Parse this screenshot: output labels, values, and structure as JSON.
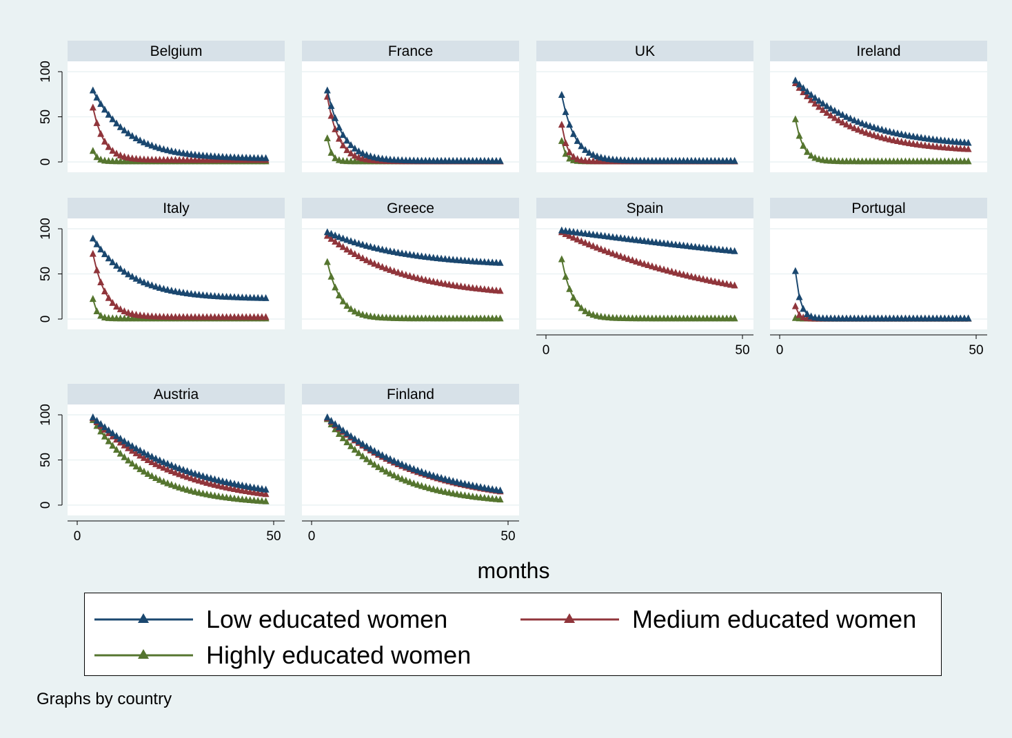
{
  "chart_data": {
    "type": "line",
    "title": "",
    "xlabel": "months",
    "ylabel": "",
    "xlim": [
      0,
      50
    ],
    "ylim": [
      0,
      100
    ],
    "xticks": [
      "0",
      "50"
    ],
    "yticks": [
      "0",
      "50",
      "100"
    ],
    "grid": true,
    "legend_position": "bottom",
    "note": "Graphs by country",
    "x_start": 4,
    "x_end": 48,
    "x_step": 1,
    "series_meta": [
      {
        "name": "Low educated women",
        "color": "#1a476f"
      },
      {
        "name": "Medium educated women",
        "color": "#90353b"
      },
      {
        "name": "Highly educated women",
        "color": "#55752f"
      }
    ],
    "panels": [
      {
        "country": "Belgium",
        "low": {
          "start": 79,
          "end": 4,
          "shape": 0.11,
          "floor": 0.05
        },
        "medium": {
          "start": 60,
          "end": 2,
          "shape": 0.35,
          "floor": 0.02
        },
        "high": {
          "start": 12,
          "end": 0.5,
          "shape": 0.9,
          "floor": 0.01
        }
      },
      {
        "country": "France",
        "low": {
          "start": 79,
          "end": 1,
          "shape": 0.25,
          "floor": 0
        },
        "medium": {
          "start": 72,
          "end": 0.5,
          "shape": 0.35,
          "floor": 0
        },
        "high": {
          "start": 26,
          "end": 0.5,
          "shape": 1.0,
          "floor": 0
        }
      },
      {
        "country": "UK",
        "low": {
          "start": 74,
          "end": 1,
          "shape": 0.3,
          "floor": 0
        },
        "medium": {
          "start": 41,
          "end": 0.5,
          "shape": 0.7,
          "floor": 0
        },
        "high": {
          "start": 23,
          "end": 0.5,
          "shape": 1.0,
          "floor": 0
        }
      },
      {
        "country": "Ireland",
        "low": {
          "start": 90,
          "end": 21,
          "shape": 0.06,
          "floor": 0.2
        },
        "medium": {
          "start": 87,
          "end": 14,
          "shape": 0.07,
          "floor": 0.12
        },
        "high": {
          "start": 47,
          "end": 0.5,
          "shape": 0.5,
          "floor": 0
        }
      },
      {
        "country": "Italy",
        "low": {
          "start": 89,
          "end": 23,
          "shape": 0.1,
          "floor": 0.25
        },
        "medium": {
          "start": 72,
          "end": 2,
          "shape": 0.3,
          "floor": 0.02
        },
        "high": {
          "start": 22,
          "end": 0.5,
          "shape": 1.0,
          "floor": 0
        }
      },
      {
        "country": "Greece",
        "low": {
          "start": 96,
          "end": 62,
          "shape": 0.05,
          "floor": 0.62
        },
        "medium": {
          "start": 92,
          "end": 31,
          "shape": 0.05,
          "floor": 0.25
        },
        "high": {
          "start": 63,
          "end": 0.5,
          "shape": 0.3,
          "floor": 0
        }
      },
      {
        "country": "Spain",
        "low": {
          "start": 98,
          "end": 75,
          "shape": 0.006,
          "floor": 0
        },
        "medium": {
          "start": 96,
          "end": 37,
          "shape": 0.022,
          "floor": 0
        },
        "high": {
          "start": 66,
          "end": 0.5,
          "shape": 0.35,
          "floor": 0
        }
      },
      {
        "country": "Portugal",
        "low": {
          "start": 53,
          "end": 0.5,
          "shape": 0.8,
          "floor": 0
        },
        "medium": {
          "start": 14,
          "end": 0.3,
          "shape": 1.2,
          "floor": 0
        },
        "high": {
          "start": 1,
          "end": 0.3,
          "shape": 1.0,
          "floor": 0
        }
      },
      {
        "country": "Austria",
        "low": {
          "start": 97,
          "end": 17,
          "shape": 0.04,
          "floor": 0
        },
        "medium": {
          "start": 96,
          "end": 12,
          "shape": 0.047,
          "floor": 0
        },
        "high": {
          "start": 94,
          "end": 4,
          "shape": 0.072,
          "floor": 0
        }
      },
      {
        "country": "Finland",
        "low": {
          "start": 97,
          "end": 16,
          "shape": 0.04,
          "floor": 0
        },
        "medium": {
          "start": 96,
          "end": 15,
          "shape": 0.042,
          "floor": 0
        },
        "high": {
          "start": 95,
          "end": 6,
          "shape": 0.063,
          "floor": 0
        }
      }
    ]
  },
  "legend": {
    "low": "Low educated women",
    "medium": "Medium educated women",
    "high": "Highly educated women"
  },
  "xaxis_title": "months",
  "note": "Graphs by country"
}
